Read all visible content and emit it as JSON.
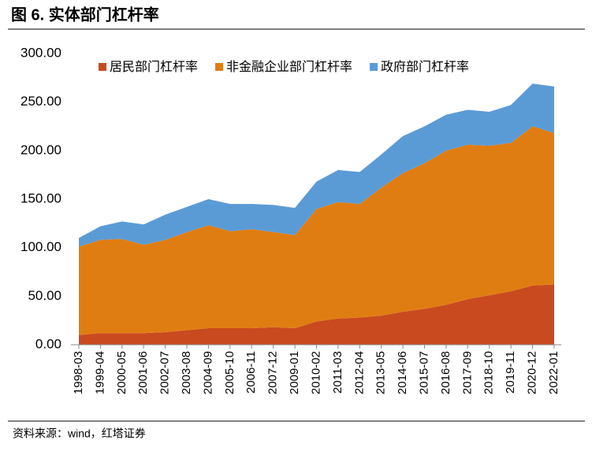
{
  "title": "图 6. 实体部门杠杆率",
  "source": "资料来源：wind，红塔证券",
  "chart_data": {
    "type": "stacked_area",
    "categories": [
      "1998-03",
      "1999-04",
      "2000-05",
      "2001-06",
      "2002-07",
      "2003-08",
      "2004-09",
      "2005-10",
      "2006-11",
      "2007-12",
      "2009-01",
      "2010-02",
      "2011-03",
      "2012-04",
      "2013-05",
      "2014-06",
      "2015-07",
      "2016-08",
      "2017-09",
      "2018-10",
      "2019-11",
      "2020-12",
      "2022-01"
    ],
    "series": [
      {
        "name": "居民部门杠杆率",
        "color": "#c94a1f",
        "values": [
          10,
          12,
          12,
          12,
          13,
          15,
          17,
          17,
          17,
          18,
          17,
          24,
          27,
          28,
          30,
          34,
          37,
          41,
          47,
          51,
          55,
          61,
          62
        ]
      },
      {
        "name": "非金融企业部门杠杆率",
        "color": "#e07d12",
        "values": [
          91,
          96,
          97,
          91,
          95,
          101,
          106,
          100,
          102,
          98,
          96,
          116,
          120,
          117,
          132,
          143,
          150,
          159,
          159,
          154,
          153,
          164,
          156
        ]
      },
      {
        "name": "政府部门杠杆率",
        "color": "#5b9bd5",
        "values": [
          9,
          14,
          18,
          21,
          26,
          26,
          27,
          28,
          26,
          28,
          28,
          28,
          33,
          33,
          34,
          38,
          38,
          37,
          36,
          35,
          39,
          44,
          48
        ]
      }
    ],
    "ylim": [
      0,
      300
    ],
    "yticks": [
      {
        "value": 0,
        "label": "0.00"
      },
      {
        "value": 50,
        "label": "50.00"
      },
      {
        "value": 100,
        "label": "100.00"
      },
      {
        "value": 150,
        "label": "150.00"
      },
      {
        "value": 200,
        "label": "200.00"
      },
      {
        "value": 250,
        "label": "250.00"
      },
      {
        "value": 300,
        "label": "300.00"
      }
    ],
    "legend": "top"
  }
}
